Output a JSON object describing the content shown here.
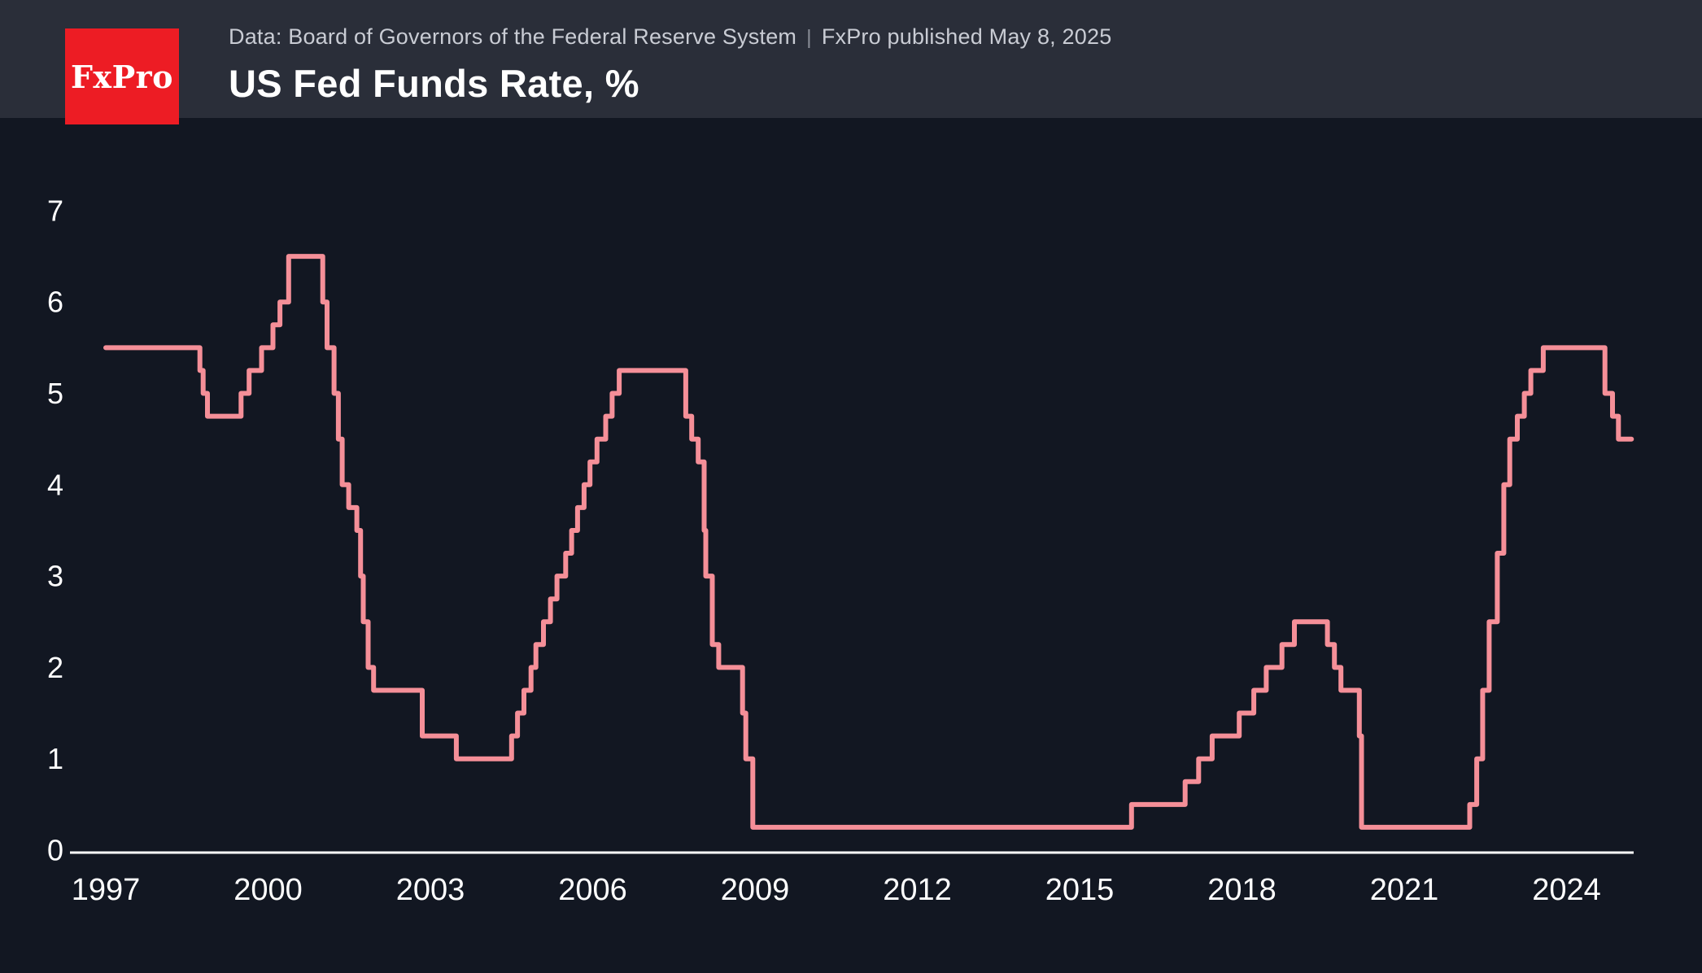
{
  "header": {
    "logo_text": "FxPro",
    "source_text": "Data: Board of Governors of the Federal Reserve System",
    "separator": "|",
    "published_text": "FxPro published May 8, 2025",
    "title": "US Fed Funds Rate, %"
  },
  "colors": {
    "header_bg": "#2a2e39",
    "plot_bg": "#121722",
    "logo_red": "#ed1c24",
    "line_color": "#f58f98",
    "axis_line": "#ffffff",
    "axis_text": "#ffffff",
    "source_text": "#c9ccd4"
  },
  "chart_data": {
    "type": "line",
    "line_style": "step-after",
    "title": "US Fed Funds Rate, %",
    "xlabel": "",
    "ylabel": "",
    "legend": false,
    "grid": false,
    "xlim": [
      1996.4,
      2025.4
    ],
    "ylim": [
      0,
      7.3
    ],
    "x_ticks": [
      1997,
      2000,
      2003,
      2006,
      2009,
      2012,
      2015,
      2018,
      2021,
      2024
    ],
    "y_ticks": [
      0,
      1,
      2,
      3,
      4,
      5,
      6,
      7
    ],
    "x_end": 2025.2,
    "series": [
      {
        "name": "US Fed Funds Rate (%)",
        "points": [
          [
            1997.0,
            5.5
          ],
          [
            1998.74,
            5.25
          ],
          [
            1998.8,
            5.0
          ],
          [
            1998.88,
            4.75
          ],
          [
            1999.5,
            5.0
          ],
          [
            1999.65,
            5.25
          ],
          [
            1999.88,
            5.5
          ],
          [
            2000.09,
            5.75
          ],
          [
            2000.22,
            6.0
          ],
          [
            2000.38,
            6.5
          ],
          [
            2001.01,
            6.0
          ],
          [
            2001.09,
            5.5
          ],
          [
            2001.22,
            5.0
          ],
          [
            2001.3,
            4.5
          ],
          [
            2001.37,
            4.0
          ],
          [
            2001.49,
            3.75
          ],
          [
            2001.64,
            3.5
          ],
          [
            2001.71,
            3.0
          ],
          [
            2001.76,
            2.5
          ],
          [
            2001.85,
            2.0
          ],
          [
            2001.95,
            1.75
          ],
          [
            2002.85,
            1.25
          ],
          [
            2003.48,
            1.0
          ],
          [
            2004.5,
            1.25
          ],
          [
            2004.61,
            1.5
          ],
          [
            2004.73,
            1.75
          ],
          [
            2004.86,
            2.0
          ],
          [
            2004.95,
            2.25
          ],
          [
            2005.09,
            2.5
          ],
          [
            2005.22,
            2.75
          ],
          [
            2005.34,
            3.0
          ],
          [
            2005.5,
            3.25
          ],
          [
            2005.61,
            3.5
          ],
          [
            2005.72,
            3.75
          ],
          [
            2005.84,
            4.0
          ],
          [
            2005.95,
            4.25
          ],
          [
            2006.08,
            4.5
          ],
          [
            2006.24,
            4.75
          ],
          [
            2006.36,
            5.0
          ],
          [
            2006.49,
            5.25
          ],
          [
            2007.72,
            4.75
          ],
          [
            2007.83,
            4.5
          ],
          [
            2007.95,
            4.25
          ],
          [
            2008.06,
            3.5
          ],
          [
            2008.09,
            3.0
          ],
          [
            2008.21,
            2.25
          ],
          [
            2008.33,
            2.0
          ],
          [
            2008.77,
            1.5
          ],
          [
            2008.83,
            1.0
          ],
          [
            2008.96,
            0.25
          ],
          [
            2015.96,
            0.5
          ],
          [
            2016.95,
            0.75
          ],
          [
            2017.2,
            1.0
          ],
          [
            2017.45,
            1.25
          ],
          [
            2017.95,
            1.5
          ],
          [
            2018.22,
            1.75
          ],
          [
            2018.45,
            2.0
          ],
          [
            2018.74,
            2.25
          ],
          [
            2018.97,
            2.5
          ],
          [
            2019.58,
            2.25
          ],
          [
            2019.71,
            2.0
          ],
          [
            2019.83,
            1.75
          ],
          [
            2020.17,
            1.25
          ],
          [
            2020.21,
            0.25
          ],
          [
            2022.21,
            0.5
          ],
          [
            2022.34,
            1.0
          ],
          [
            2022.45,
            1.75
          ],
          [
            2022.57,
            2.5
          ],
          [
            2022.72,
            3.25
          ],
          [
            2022.84,
            4.0
          ],
          [
            2022.95,
            4.5
          ],
          [
            2023.09,
            4.75
          ],
          [
            2023.22,
            5.0
          ],
          [
            2023.34,
            5.25
          ],
          [
            2023.57,
            5.5
          ],
          [
            2024.71,
            5.0
          ],
          [
            2024.85,
            4.75
          ],
          [
            2024.96,
            4.5
          ]
        ]
      }
    ]
  }
}
